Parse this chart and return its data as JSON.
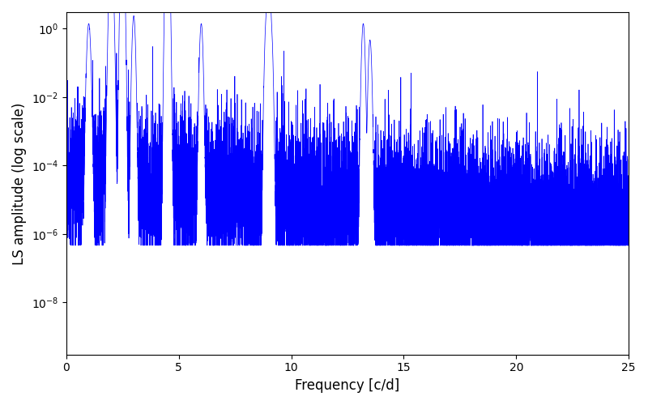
{
  "title": "",
  "xlabel": "Frequency [c/d]",
  "ylabel": "LS amplitude (log scale)",
  "line_color": "#0000ff",
  "line_width": 0.5,
  "xlim": [
    0,
    25
  ],
  "ylim_low": 3e-10,
  "ylim_high": 3.0,
  "yscale": "log",
  "figsize": [
    8.0,
    5.0
  ],
  "dpi": 100,
  "background_color": "#ffffff",
  "seed": 12345,
  "n_points": 12000
}
